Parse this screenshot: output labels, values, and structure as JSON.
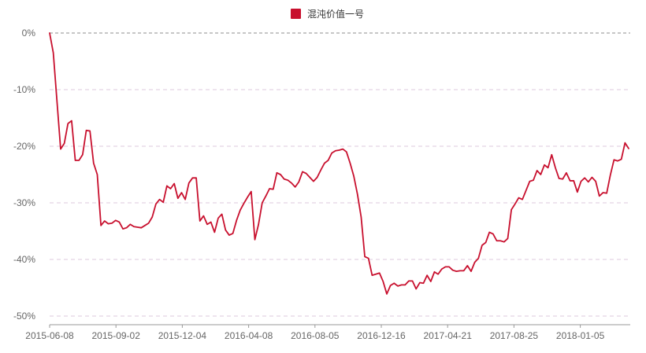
{
  "chart_data": {
    "type": "line",
    "title": "",
    "xlabel": "",
    "ylabel": "",
    "ylim": [
      -50,
      0
    ],
    "y_tick_values": [
      0,
      -10,
      -20,
      -30,
      -40,
      -50
    ],
    "y_tick_labels": [
      "0%",
      "-10%",
      "-20%",
      "-30%",
      "-40%",
      "-50%"
    ],
    "x_tick_labels": [
      "2015-06-08",
      "2015-09-02",
      "2015-12-04",
      "2016-04-08",
      "2016-08-05",
      "2016-12-16",
      "2017-04-21",
      "2017-08-25",
      "2018-01-05"
    ],
    "grid": true,
    "legend_position": "top-center",
    "series": [
      {
        "name": "混沌价值一号",
        "color": "#c8102e",
        "values": [
          0,
          -3.5,
          -12,
          -20.5,
          -19.5,
          -16,
          -15.5,
          -22.5,
          -22.5,
          -21.5,
          -17.2,
          -17.3,
          -23,
          -25,
          -34,
          -33.2,
          -33.7,
          -33.6,
          -33.1,
          -33.4,
          -34.6,
          -34.4,
          -33.8,
          -34.2,
          -34.3,
          -34.4,
          -34,
          -33.6,
          -32.5,
          -30.2,
          -29.4,
          -29.9,
          -27,
          -27.5,
          -26.6,
          -29.2,
          -28.2,
          -29.4,
          -26.5,
          -25.6,
          -25.6,
          -33.2,
          -32.3,
          -33.8,
          -33.4,
          -35.2,
          -32.7,
          -32,
          -34.8,
          -35.7,
          -35.4,
          -33.1,
          -31.3,
          -30.1,
          -29,
          -28,
          -36.5,
          -33.8,
          -30,
          -28.8,
          -27.5,
          -27.6,
          -24.7,
          -25,
          -25.8,
          -26,
          -26.5,
          -27.2,
          -26.3,
          -24.5,
          -24.8,
          -25.5,
          -26.2,
          -25.5,
          -24.2,
          -23,
          -22.5,
          -21.2,
          -20.8,
          -20.7,
          -20.5,
          -21,
          -23,
          -25.3,
          -28.5,
          -32.5,
          -39.5,
          -39.8,
          -42.8,
          -42.6,
          -42.4,
          -43.9,
          -46.1,
          -44.6,
          -44.2,
          -44.7,
          -44.5,
          -44.5,
          -43.8,
          -43.8,
          -45.2,
          -44.1,
          -44.2,
          -42.8,
          -43.9,
          -42.2,
          -42.6,
          -41.7,
          -41.3,
          -41.3,
          -41.9,
          -42.1,
          -42,
          -42,
          -41.1,
          -42.1,
          -40.5,
          -39.8,
          -37.5,
          -37,
          -35.2,
          -35.5,
          -36.7,
          -36.7,
          -36.9,
          -36.3,
          -31.2,
          -30.2,
          -29.1,
          -29.4,
          -27.8,
          -26.2,
          -26,
          -24.3,
          -25,
          -23.3,
          -23.8,
          -21.5,
          -23.8,
          -25.7,
          -25.8,
          -24.7,
          -26.1,
          -26.1,
          -28.1,
          -26.2,
          -25.6,
          -26.3,
          -25.5,
          -26.2,
          -28.8,
          -28.2,
          -28.3,
          -25.1,
          -22.4,
          -22.6,
          -22.3,
          -19.4,
          -20.4
        ]
      }
    ]
  }
}
